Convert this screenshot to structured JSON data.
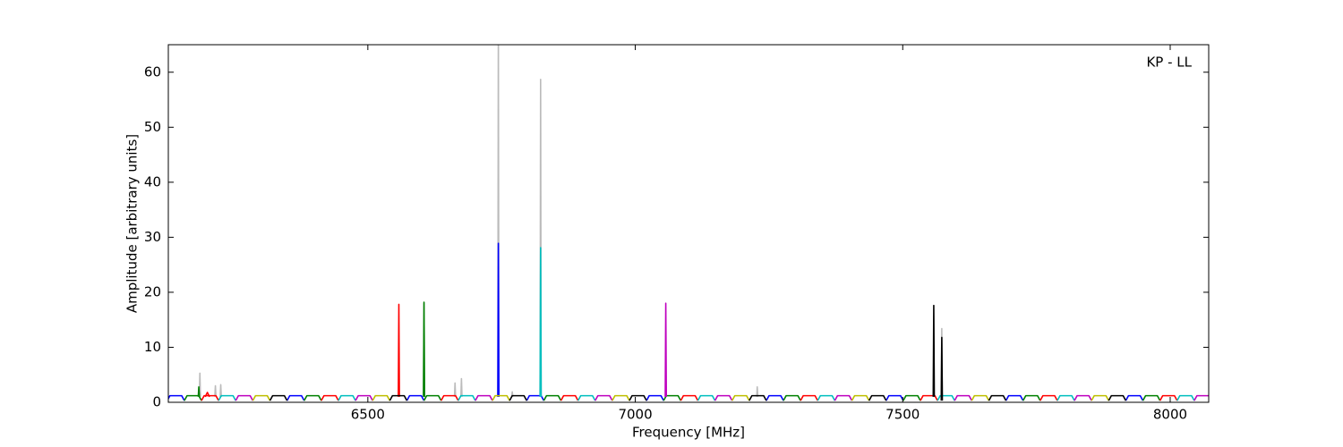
{
  "chart_data": {
    "type": "line",
    "title": "KP - LL",
    "xlabel": "Frequency [MHz]",
    "ylabel": "Amplitude [arbitrary units]",
    "xlim": [
      6127,
      8072
    ],
    "ylim": [
      0,
      65
    ],
    "xticks": [
      6500,
      7000,
      7500,
      8000
    ],
    "yticks": [
      0,
      10,
      20,
      30,
      40,
      50,
      60
    ],
    "grid": false,
    "series": [
      {
        "color": "#bbbbbb",
        "x": [
          6185,
          6186,
          6187,
          null,
          6214,
          6215,
          6216,
          null,
          6224,
          6225,
          6226,
          null,
          6604,
          6605,
          6606,
          null,
          6662,
          6663,
          6664,
          null,
          6674,
          6675,
          6676,
          null,
          6743,
          6744,
          6745,
          null,
          6769,
          6770,
          6771,
          null,
          6822,
          6823,
          6824,
          null,
          7227,
          7228,
          7229,
          null,
          7572,
          7573,
          7574
        ],
        "values": [
          1,
          5.3,
          1,
          null,
          1,
          3,
          1,
          null,
          1,
          3.2,
          1,
          null,
          1,
          18,
          1,
          null,
          1,
          3.5,
          1,
          null,
          1,
          4.3,
          1,
          null,
          1,
          68,
          1,
          null,
          1,
          1.9,
          1,
          null,
          1,
          58.7,
          1,
          null,
          1,
          2.8,
          1,
          null,
          1,
          13.4,
          1
        ]
      },
      {
        "color": "#0000ff",
        "x": [
          6125,
          6130,
          6152,
          6157,
          null,
          6349,
          6354,
          6376,
          6381,
          null,
          6573,
          6578,
          6600,
          6605,
          null,
          6797,
          6802,
          6824,
          6829,
          null,
          7021,
          7026,
          7048,
          7053,
          null,
          7245,
          7250,
          7272,
          7277,
          null,
          7469,
          7474,
          7496,
          7501,
          null,
          7693,
          7698,
          7720,
          7725,
          null,
          7917,
          7922,
          7944,
          7949,
          null,
          6743,
          6744,
          6745
        ],
        "values": [
          0.3,
          1.2,
          1.2,
          0.3,
          null,
          0.3,
          1.2,
          1.2,
          0.3,
          null,
          0.3,
          1.2,
          1.2,
          0.3,
          null,
          0.3,
          1.2,
          1.2,
          0.3,
          null,
          0.3,
          1.2,
          1.2,
          0.3,
          null,
          0.3,
          1.2,
          1.2,
          0.3,
          null,
          0.3,
          1.2,
          1.2,
          0.3,
          null,
          0.3,
          1.2,
          1.2,
          0.3,
          null,
          0.3,
          1.2,
          1.2,
          0.3,
          null,
          1,
          28.9,
          1
        ]
      },
      {
        "color": "#008000",
        "x": [
          6157,
          6162,
          6184,
          6189,
          null,
          6381,
          6386,
          6408,
          6413,
          null,
          6605,
          6610,
          6632,
          6637,
          null,
          6829,
          6834,
          6856,
          6861,
          null,
          7053,
          7058,
          7080,
          7085,
          null,
          7277,
          7282,
          7304,
          7309,
          null,
          7501,
          7506,
          7528,
          7533,
          null,
          7725,
          7730,
          7752,
          7757,
          null,
          7949,
          7954,
          7976,
          7981,
          null,
          6183,
          6184,
          6185,
          null,
          6604,
          6605,
          6606
        ],
        "values": [
          0.3,
          1.2,
          1.2,
          0.3,
          null,
          0.3,
          1.2,
          1.2,
          0.3,
          null,
          0.3,
          1.2,
          1.2,
          0.3,
          null,
          0.3,
          1.2,
          1.2,
          0.3,
          null,
          0.3,
          1.2,
          1.2,
          0.3,
          null,
          0.3,
          1.2,
          1.2,
          0.3,
          null,
          0.3,
          1.2,
          1.2,
          0.3,
          null,
          0.3,
          1.2,
          1.2,
          0.3,
          null,
          0.3,
          1.2,
          1.2,
          0.3,
          null,
          1,
          2.8,
          1,
          null,
          1,
          18.2,
          1
        ]
      },
      {
        "color": "#ff0000",
        "x": [
          6189,
          6194,
          6216,
          6221,
          null,
          6413,
          6418,
          6440,
          6445,
          null,
          6637,
          6642,
          6664,
          6669,
          null,
          6861,
          6866,
          6888,
          6893,
          null,
          7085,
          7090,
          7112,
          7117,
          null,
          7309,
          7314,
          7336,
          7341,
          null,
          7533,
          7538,
          7560,
          7565,
          null,
          7757,
          7762,
          7784,
          7789,
          null,
          7981,
          7986,
          8008,
          8013,
          null,
          6196,
          6200,
          6204,
          null,
          6557,
          6558,
          6559
        ],
        "values": [
          0.3,
          1.2,
          1.2,
          0.3,
          null,
          0.3,
          1.2,
          1.2,
          0.3,
          null,
          0.3,
          1.2,
          1.2,
          0.3,
          null,
          0.3,
          1.2,
          1.2,
          0.3,
          null,
          0.3,
          1.2,
          1.2,
          0.3,
          null,
          0.3,
          1.2,
          1.2,
          0.3,
          null,
          0.3,
          1.2,
          1.2,
          0.3,
          null,
          0.3,
          1.2,
          1.2,
          0.3,
          null,
          0.3,
          1.2,
          1.2,
          0.3,
          null,
          1,
          1.8,
          1,
          null,
          1,
          17.8,
          1
        ]
      },
      {
        "color": "#00bfbf",
        "x": [
          6221,
          6226,
          6248,
          6253,
          null,
          6445,
          6450,
          6472,
          6477,
          null,
          6669,
          6674,
          6696,
          6701,
          null,
          6893,
          6898,
          6920,
          6925,
          null,
          7117,
          7122,
          7144,
          7149,
          null,
          7341,
          7346,
          7368,
          7373,
          null,
          7565,
          7570,
          7592,
          7597,
          null,
          7789,
          7794,
          7816,
          7821,
          null,
          8013,
          8018,
          8040,
          8045,
          null,
          6822,
          6823,
          6824
        ],
        "values": [
          0.3,
          1.2,
          1.2,
          0.3,
          null,
          0.3,
          1.2,
          1.2,
          0.3,
          null,
          0.3,
          1.2,
          1.2,
          0.3,
          null,
          0.3,
          1.2,
          1.2,
          0.3,
          null,
          0.3,
          1.2,
          1.2,
          0.3,
          null,
          0.3,
          1.2,
          1.2,
          0.3,
          null,
          0.3,
          1.2,
          1.2,
          0.3,
          null,
          0.3,
          1.2,
          1.2,
          0.3,
          null,
          0.3,
          1.2,
          1.2,
          0.3,
          null,
          1,
          28.1,
          1
        ]
      },
      {
        "color": "#bf00bf",
        "x": [
          6253,
          6258,
          6280,
          6285,
          null,
          6477,
          6482,
          6504,
          6509,
          null,
          6701,
          6706,
          6728,
          6733,
          null,
          6925,
          6930,
          6952,
          6957,
          null,
          7149,
          7154,
          7176,
          7181,
          null,
          7373,
          7378,
          7400,
          7405,
          null,
          7597,
          7602,
          7624,
          7629,
          null,
          7821,
          7826,
          7848,
          7853,
          null,
          8045,
          8050,
          8072,
          8077,
          null,
          7056,
          7057,
          7058
        ],
        "values": [
          0.3,
          1.2,
          1.2,
          0.3,
          null,
          0.3,
          1.2,
          1.2,
          0.3,
          null,
          0.3,
          1.2,
          1.2,
          0.3,
          null,
          0.3,
          1.2,
          1.2,
          0.3,
          null,
          0.3,
          1.2,
          1.2,
          0.3,
          null,
          0.3,
          1.2,
          1.2,
          0.3,
          null,
          0.3,
          1.2,
          1.2,
          0.3,
          null,
          0.3,
          1.2,
          1.2,
          0.3,
          null,
          0.3,
          1.2,
          1.2,
          0.3,
          null,
          1,
          18,
          1
        ]
      },
      {
        "color": "#bfbf00",
        "x": [
          6285,
          6290,
          6312,
          6317,
          null,
          6509,
          6514,
          6536,
          6541,
          null,
          6733,
          6738,
          6760,
          6765,
          null,
          6957,
          6962,
          6984,
          6989,
          null,
          7181,
          7186,
          7208,
          7213,
          null,
          7405,
          7410,
          7432,
          7437,
          null,
          7629,
          7634,
          7656,
          7661,
          null,
          7853,
          7858,
          7880,
          7885
        ],
        "values": [
          0.3,
          1.2,
          1.2,
          0.3,
          null,
          0.3,
          1.2,
          1.2,
          0.3,
          null,
          0.3,
          1.2,
          1.2,
          0.3,
          null,
          0.3,
          1.2,
          1.2,
          0.3,
          null,
          0.3,
          1.2,
          1.2,
          0.3,
          null,
          0.3,
          1.2,
          1.2,
          0.3,
          null,
          0.3,
          1.2,
          1.2,
          0.3,
          null,
          0.3,
          1.2,
          1.2,
          0.3
        ]
      },
      {
        "color": "#000000",
        "x": [
          6317,
          6322,
          6344,
          6349,
          null,
          6541,
          6546,
          6568,
          6573,
          null,
          6765,
          6770,
          6792,
          6797,
          null,
          6989,
          6994,
          7016,
          7021,
          null,
          7213,
          7218,
          7240,
          7245,
          null,
          7437,
          7442,
          7464,
          7469,
          null,
          7661,
          7666,
          7688,
          7693,
          null,
          7885,
          7890,
          7912,
          7917,
          null,
          7557,
          7558,
          7559,
          null,
          7572,
          7573,
          7574
        ],
        "values": [
          0.3,
          1.2,
          1.2,
          0.3,
          null,
          0.3,
          1.2,
          1.2,
          0.3,
          null,
          0.3,
          1.2,
          1.2,
          0.3,
          null,
          0.3,
          1.2,
          1.2,
          0.3,
          null,
          0.3,
          1.2,
          1.2,
          0.3,
          null,
          0.3,
          1.2,
          1.2,
          0.3,
          null,
          0.3,
          1.2,
          1.2,
          0.3,
          null,
          0.3,
          1.2,
          1.2,
          0.3,
          null,
          1,
          17.6,
          1,
          null,
          0.3,
          11.8,
          0.3
        ]
      }
    ]
  }
}
